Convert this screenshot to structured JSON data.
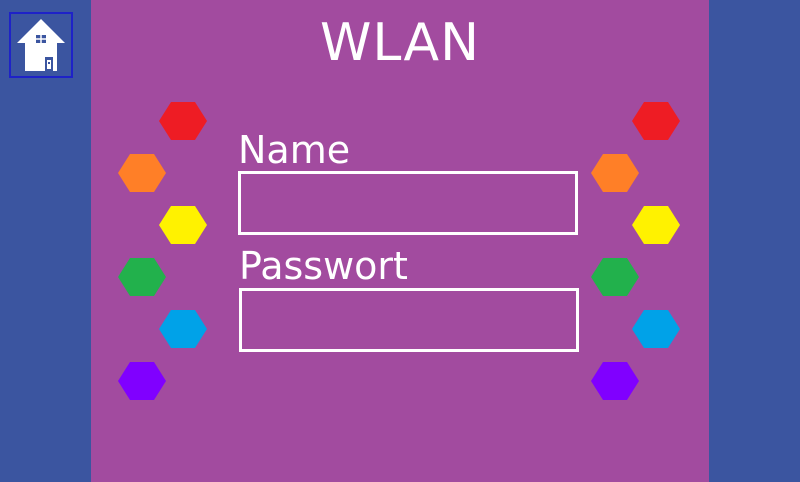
{
  "title": "WLAN",
  "home": {
    "icon": "house-icon"
  },
  "form": {
    "name_label": "Name",
    "name_value": "",
    "password_label": "Passwort",
    "password_value": ""
  },
  "colors": {
    "background": "#3b55a0",
    "panel": "#a24b9f",
    "home_border": "#1e22c8",
    "text": "#ffffff"
  },
  "hexagons": {
    "left": [
      "#ee1c24",
      "#ff7f27",
      "#fff200",
      "#22b14c",
      "#00a2e8",
      "#8000ff"
    ],
    "right": [
      "#ee1c24",
      "#ff7f27",
      "#fff200",
      "#22b14c",
      "#00a2e8",
      "#8000ff"
    ]
  }
}
